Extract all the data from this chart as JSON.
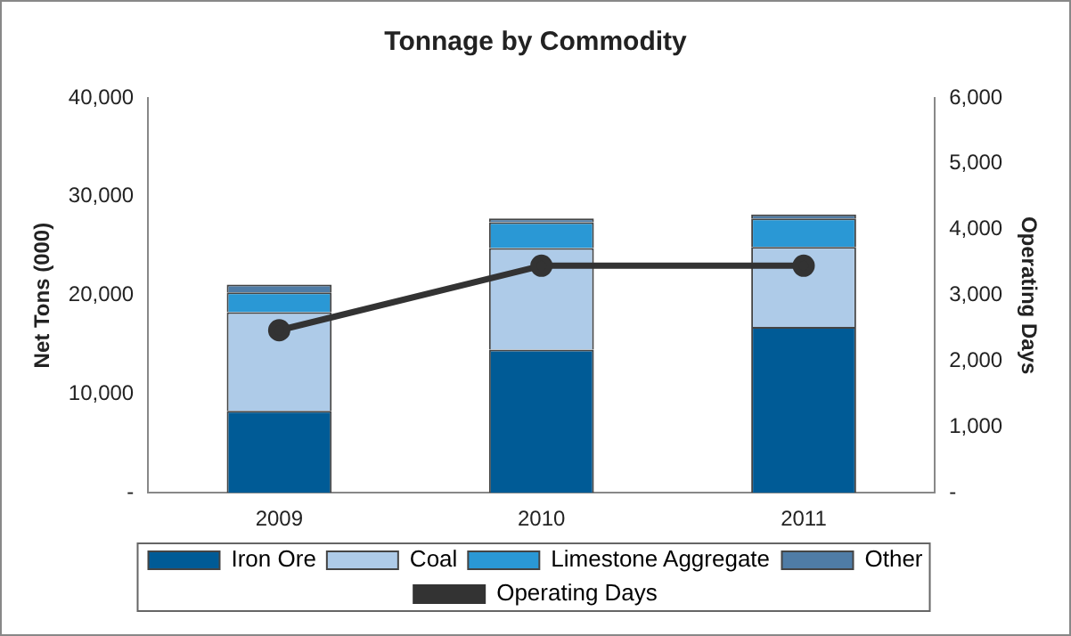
{
  "chart_data": {
    "type": "bar",
    "title": "Tonnage by Commodity",
    "ylabel": "Net Tons (000)",
    "y2label": "Operating Days",
    "categories": [
      "2009",
      "2010",
      "2011"
    ],
    "stacked": true,
    "legend": "bottom",
    "grid": false,
    "marker": "circle",
    "ylim": [
      0,
      40000
    ],
    "yticks": [
      {
        "value": 0,
        "label": "-"
      },
      {
        "value": 10000,
        "label": "10,000"
      },
      {
        "value": 20000,
        "label": "20,000"
      },
      {
        "value": 30000,
        "label": "30,000"
      },
      {
        "value": 40000,
        "label": "40,000"
      }
    ],
    "y2lim": [
      0,
      6000
    ],
    "y2ticks": [
      {
        "value": 0,
        "label": "-"
      },
      {
        "value": 1000,
        "label": "1,000"
      },
      {
        "value": 2000,
        "label": "2,000"
      },
      {
        "value": 3000,
        "label": "3,000"
      },
      {
        "value": 4000,
        "label": "4,000"
      },
      {
        "value": 5000,
        "label": "5,000"
      },
      {
        "value": 6000,
        "label": "6,000"
      }
    ],
    "series": [
      {
        "name": "Iron Ore",
        "color": "#005b96",
        "values": [
          8300,
          14500,
          16800
        ]
      },
      {
        "name": "Coal",
        "color": "#aecbe8",
        "values": [
          10000,
          10300,
          8100
        ]
      },
      {
        "name": "Limestone Aggregate",
        "color": "#2a98d5",
        "values": [
          2000,
          2600,
          2900
        ]
      },
      {
        "name": "Other",
        "color": "#4f7ca6",
        "values": [
          800,
          400,
          400
        ]
      },
      {
        "name": "Operating Days",
        "type": "line",
        "axis": "y2",
        "color": "#333333",
        "values": [
          2470,
          3450,
          3450
        ]
      }
    ]
  }
}
